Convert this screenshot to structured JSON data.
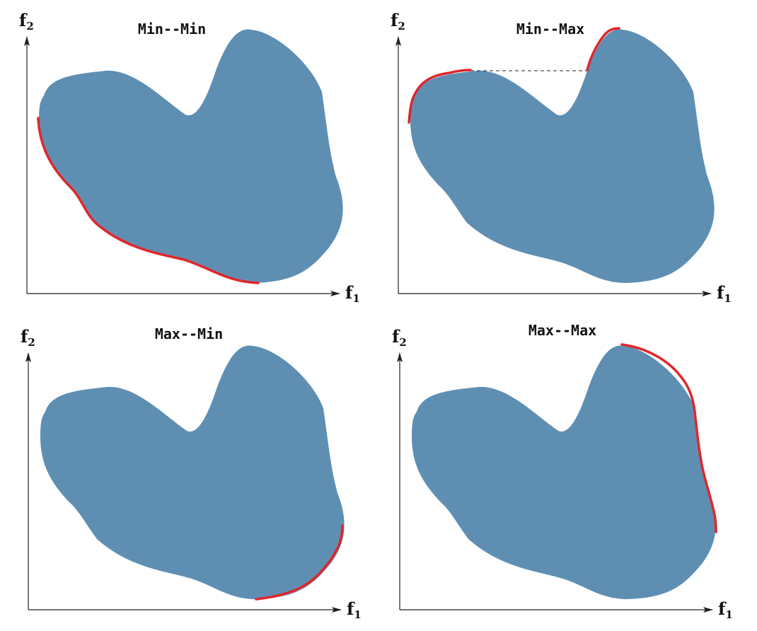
{
  "colors": {
    "region_fill": "#5e8fb3",
    "pareto_front": "#e0262b",
    "axis": "#222222"
  },
  "axes": {
    "x_label": "f",
    "x_subscript": "1",
    "y_label": "f",
    "y_subscript": "2"
  },
  "panels": [
    {
      "id": "min-min",
      "title": "Min--Min",
      "front_segment": "lower-left"
    },
    {
      "id": "min-max",
      "title": "Min--Max",
      "front_segment": "upper-left"
    },
    {
      "id": "max-min",
      "title": "Max--Min",
      "front_segment": "lower-right"
    },
    {
      "id": "max-max",
      "title": "Max--Max",
      "front_segment": "upper-right"
    }
  ]
}
